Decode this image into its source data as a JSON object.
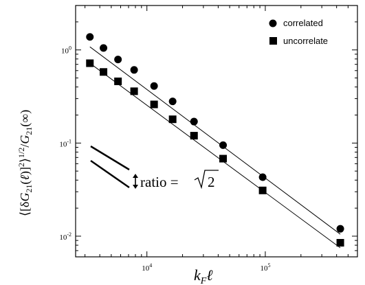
{
  "chart_data": {
    "type": "scatter",
    "xscale": "log",
    "yscale": "log",
    "xlim": [
      2500,
      600000
    ],
    "ylim": [
      0.006,
      3
    ],
    "xticks": [
      {
        "value": 10000,
        "base": "10",
        "exp": "4"
      },
      {
        "value": 100000,
        "base": "10",
        "exp": "5"
      }
    ],
    "yticks": [
      {
        "value": 1,
        "base": "10",
        "exp": "0"
      },
      {
        "value": 0.1,
        "base": "10",
        "exp": "-1"
      },
      {
        "value": 0.01,
        "base": "10",
        "exp": "-2"
      }
    ],
    "xlabel": "k_F ℓ",
    "ylabel": "⟨[δG21(ℓ)]²⟩^(1/2) / G21(∞)",
    "legend": {
      "position": "top-right"
    },
    "series": [
      {
        "name": "correlated",
        "marker": "circle",
        "x": [
          3300,
          4300,
          5700,
          7800,
          11500,
          16500,
          25000,
          44000,
          95000,
          430000
        ],
        "y": [
          1.38,
          1.05,
          0.79,
          0.61,
          0.41,
          0.28,
          0.17,
          0.095,
          0.043,
          0.012
        ]
      },
      {
        "name": "uncorrelate",
        "marker": "square",
        "x": [
          3300,
          4300,
          5700,
          7800,
          11500,
          16500,
          25000,
          44000,
          95000,
          430000
        ],
        "y": [
          0.72,
          0.58,
          0.46,
          0.36,
          0.26,
          0.18,
          0.12,
          0.068,
          0.031,
          0.0085
        ]
      }
    ],
    "fit_lines": [
      {
        "x": [
          3300,
          430000
        ],
        "y": [
          1.08,
          0.0105
        ]
      },
      {
        "x": [
          3300,
          430000
        ],
        "y": [
          0.72,
          0.0075
        ]
      }
    ],
    "annotation": {
      "prefix": "ratio = ",
      "sqrt_of": "2"
    }
  }
}
